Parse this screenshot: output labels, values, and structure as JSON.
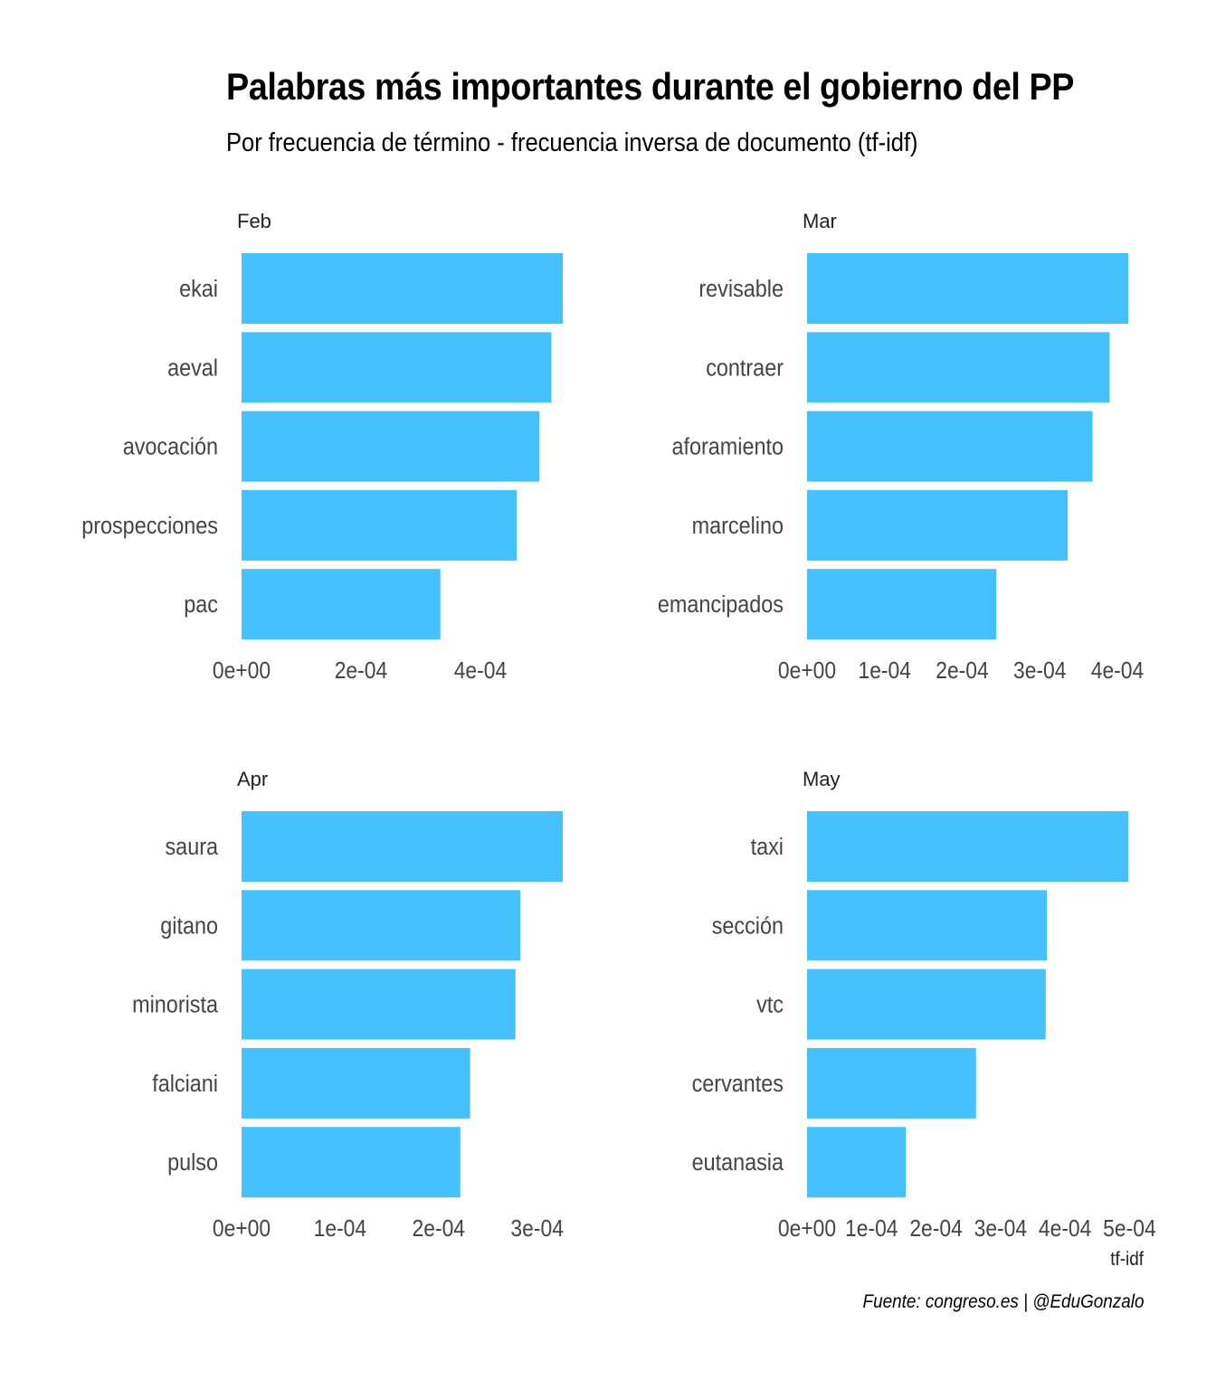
{
  "title": "Palabras más importantes durante el gobierno del PP",
  "subtitle": "Por frecuencia de término - frecuencia inversa de documento (tf-idf)",
  "caption": "Fuente: congreso.es | @EduGonzalo",
  "colors": {
    "bar": "#45C1FF"
  },
  "chart_data": {
    "type": "bar",
    "orientation": "horizontal",
    "xlabel": "tf-idf",
    "facets": [
      {
        "name": "Feb",
        "categories": [
          "ekai",
          "aeval",
          "avocación",
          "prospecciones",
          "pac"
        ],
        "values": [
          0.000538,
          0.000519,
          0.000499,
          0.000461,
          0.000333
        ],
        "ticks": [
          "0e+00",
          "2e-04",
          "4e-04"
        ],
        "tick_values": [
          0,
          0.0002,
          0.0004
        ],
        "xlim": [
          0,
          0.000538
        ]
      },
      {
        "name": "Mar",
        "categories": [
          "revisable",
          "contraer",
          "aforamiento",
          "marcelino",
          "emancipados"
        ],
        "values": [
          0.000414,
          0.00039,
          0.000368,
          0.000336,
          0.000244
        ],
        "ticks": [
          "0e+00",
          "1e-04",
          "2e-04",
          "3e-04",
          "4e-04"
        ],
        "tick_values": [
          0,
          0.0001,
          0.0002,
          0.0003,
          0.0004
        ],
        "xlim": [
          0,
          0.000414
        ]
      },
      {
        "name": "Apr",
        "categories": [
          "saura",
          "gitano",
          "minorista",
          "falciani",
          "pulso"
        ],
        "values": [
          0.000326,
          0.000283,
          0.000278,
          0.000232,
          0.000222
        ],
        "ticks": [
          "0e+00",
          "1e-04",
          "2e-04",
          "3e-04"
        ],
        "tick_values": [
          0,
          0.0001,
          0.0002,
          0.0003
        ],
        "xlim": [
          0,
          0.000326
        ]
      },
      {
        "name": "May",
        "categories": [
          "taxi",
          "sección",
          "vtc",
          "cervantes",
          "eutanasia"
        ],
        "values": [
          0.000498,
          0.000372,
          0.00037,
          0.000262,
          0.000153
        ],
        "ticks": [
          "0e+00",
          "1e-04",
          "2e-04",
          "3e-04",
          "4e-04",
          "5e-04"
        ],
        "tick_values": [
          0,
          0.0001,
          0.0002,
          0.0003,
          0.0004,
          0.0005
        ],
        "xlim": [
          0,
          0.000498
        ]
      }
    ]
  }
}
